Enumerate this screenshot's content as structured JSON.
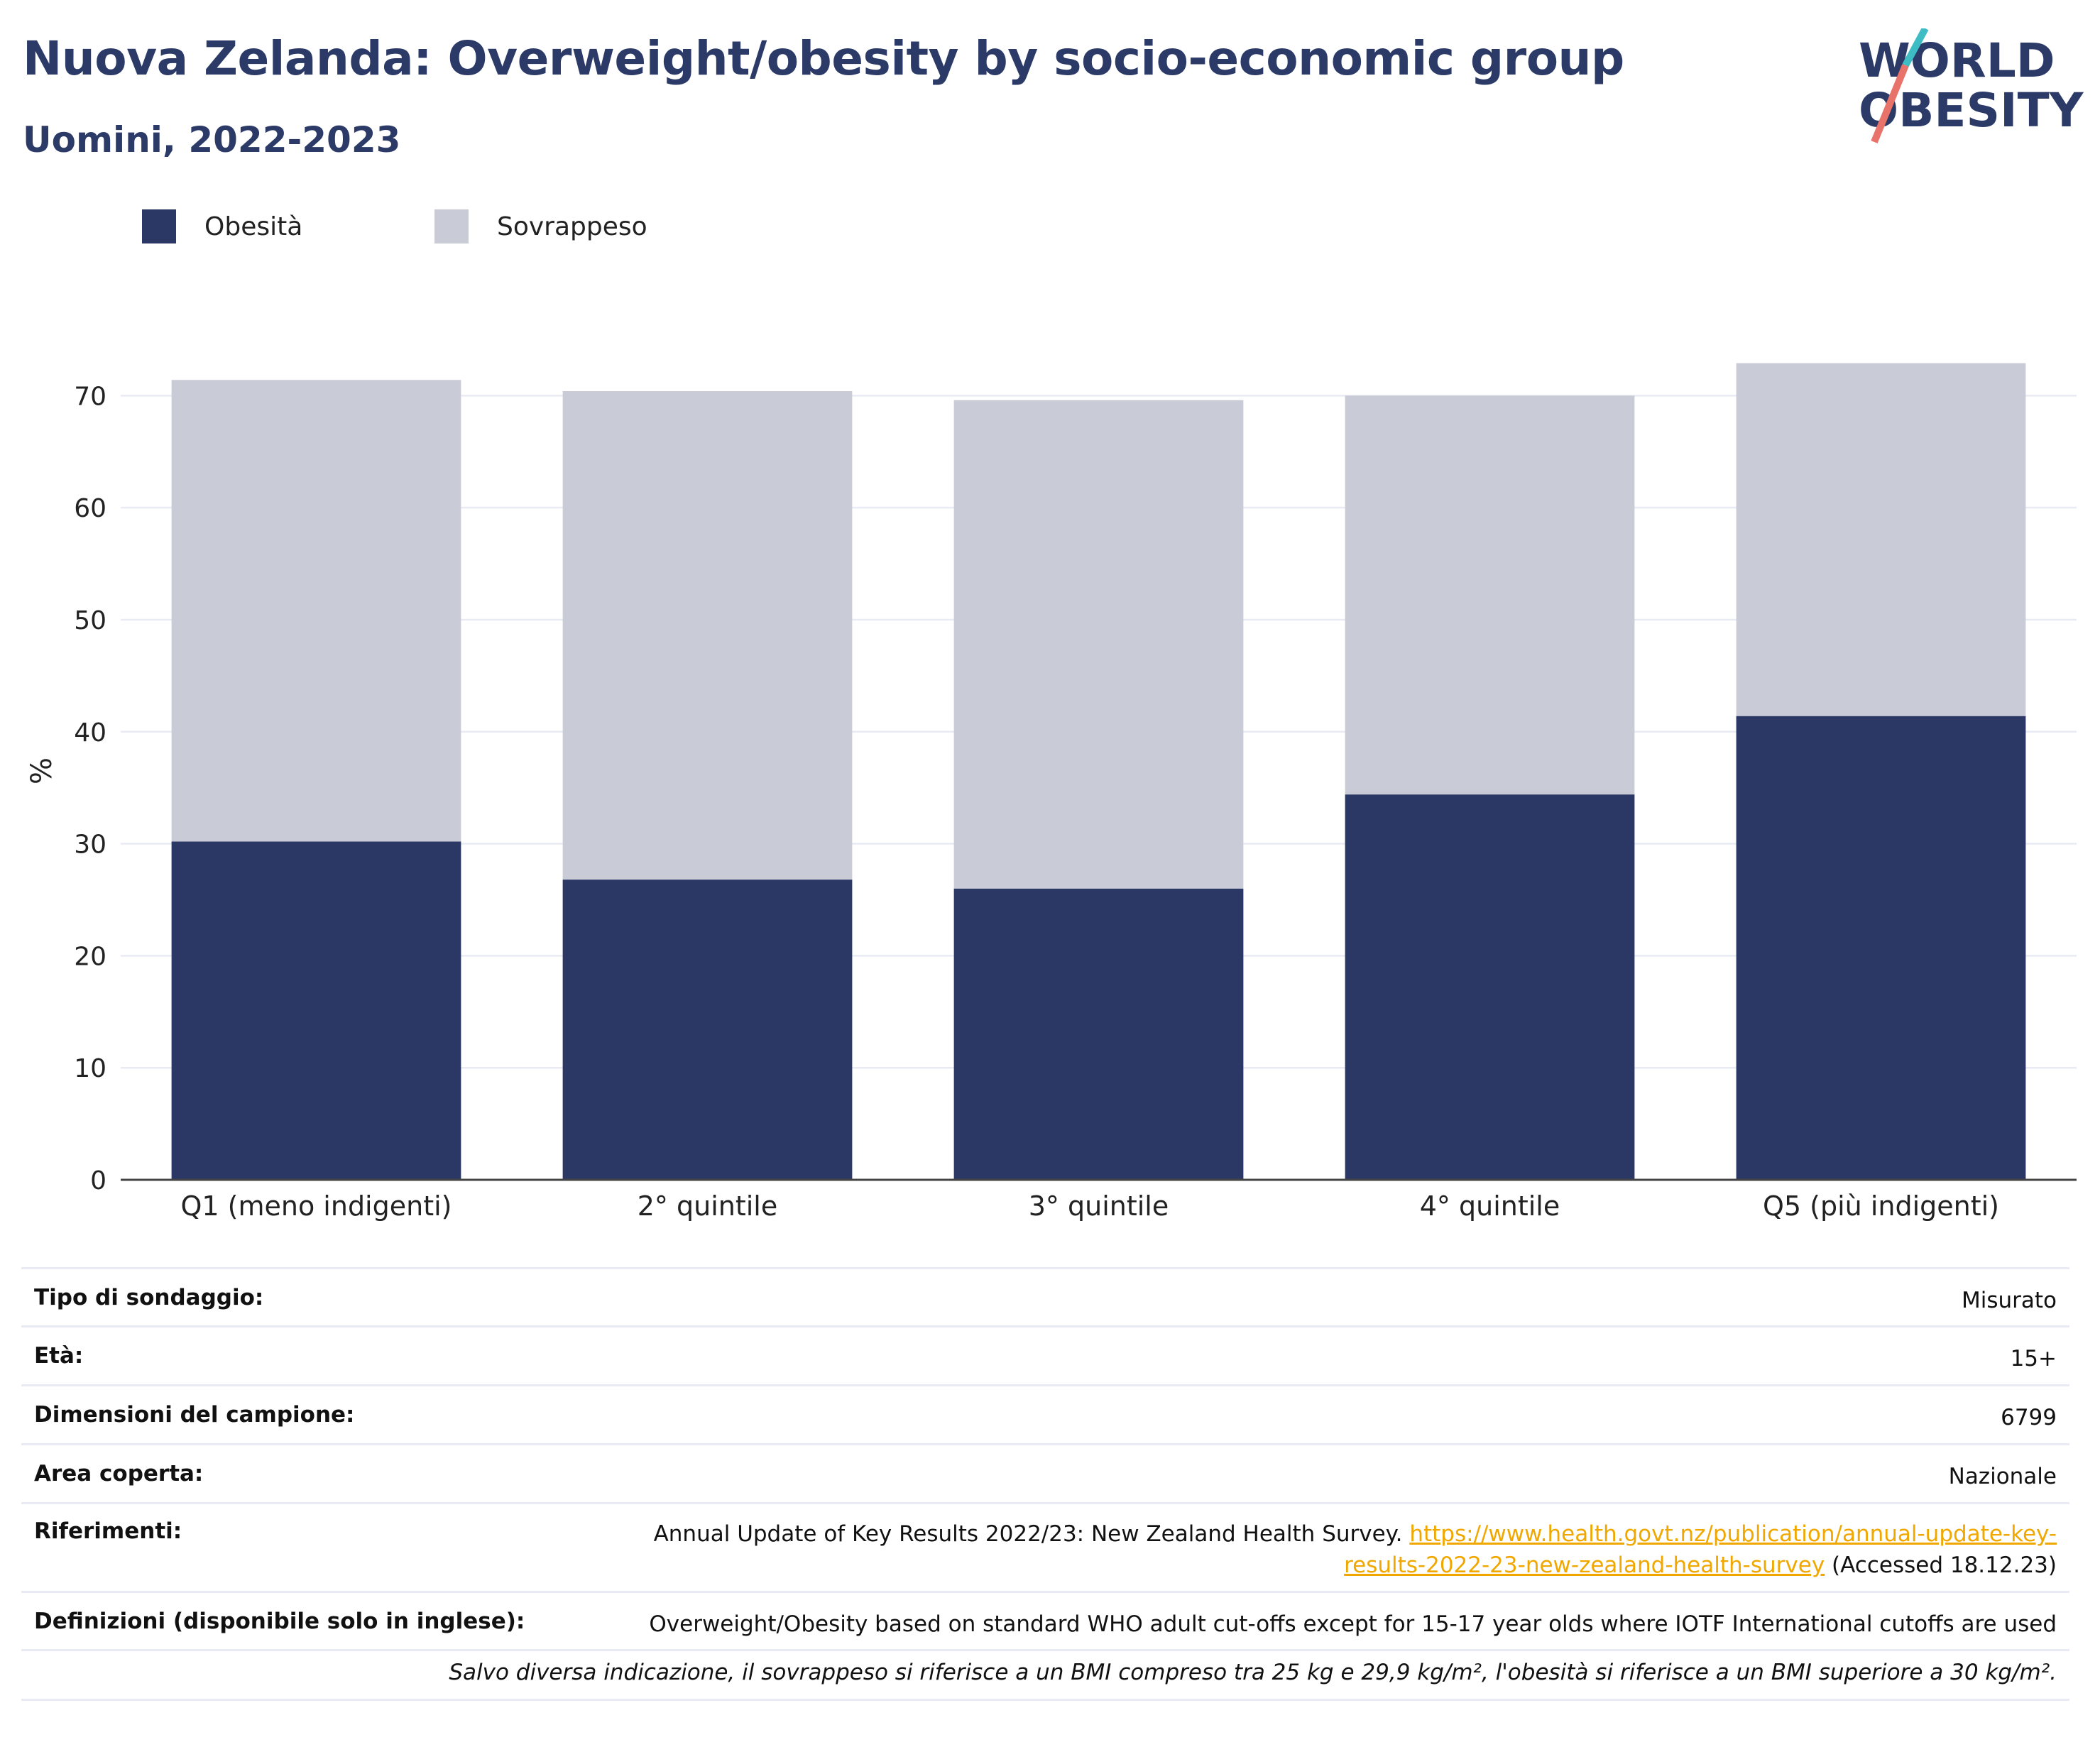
{
  "header": {
    "title": "Nuova Zelanda: Overweight/obesity by socio-economic group",
    "subtitle": "Uomini, 2022-2023"
  },
  "logo": {
    "line1": "WORLD",
    "line2": "OBESITY",
    "text_color": "#2b3a67",
    "slash_colors": [
      "#3dbcc4",
      "#e8736a"
    ]
  },
  "legend": [
    {
      "label": "Obesità",
      "color": "#2b3765"
    },
    {
      "label": "Sovrappeso",
      "color": "#c9cbd7"
    }
  ],
  "chart_data": {
    "type": "bar",
    "stacked": true,
    "categories": [
      "Q1 (meno indigenti)",
      "2° quintile",
      "3° quintile",
      "4° quintile",
      "Q5 (più indigenti)"
    ],
    "series": [
      {
        "name": "Obesità",
        "color": "#2b3765",
        "values": [
          30.2,
          26.8,
          26.0,
          34.4,
          41.4
        ]
      },
      {
        "name": "Sovrappeso",
        "color": "#c9cbd7",
        "values": [
          41.2,
          43.6,
          43.6,
          35.6,
          31.5
        ]
      }
    ],
    "ylabel": "%",
    "ylim": [
      0,
      73
    ],
    "yticks": [
      0,
      10,
      20,
      30,
      40,
      50,
      60,
      70
    ],
    "grid": true,
    "legend_position": "top-left"
  },
  "info": {
    "rows": [
      {
        "label": "Tipo di sondaggio:",
        "value": "Misurato"
      },
      {
        "label": "Età:",
        "value": "15+"
      },
      {
        "label": "Dimensioni del campione:",
        "value": "6799"
      },
      {
        "label": "Area coperta:",
        "value": "Nazionale"
      }
    ],
    "references": {
      "label": "Riferimenti:",
      "text_before": "Annual Update of Key Results 2022/23: New Zealand Health Survey. ",
      "link_line1": "https://www.health.govt.nz/publication/annual-update-key-",
      "link_line2": "results-2022-23-new-zealand-health-survey",
      "text_after": " (Accessed 18.12.23)"
    },
    "definitions": {
      "label": "Definizioni (disponibile solo in inglese):",
      "value": "Overweight/Obesity based on standard WHO adult cut-offs except for 15-17 year olds where IOTF International cutoffs are used"
    },
    "note": "Salvo diversa indicazione, il sovrappeso si riferisce a un BMI compreso tra 25 kg e 29,9 kg/m², l'obesità si riferisce a un BMI superiore a 30 kg/m²."
  }
}
